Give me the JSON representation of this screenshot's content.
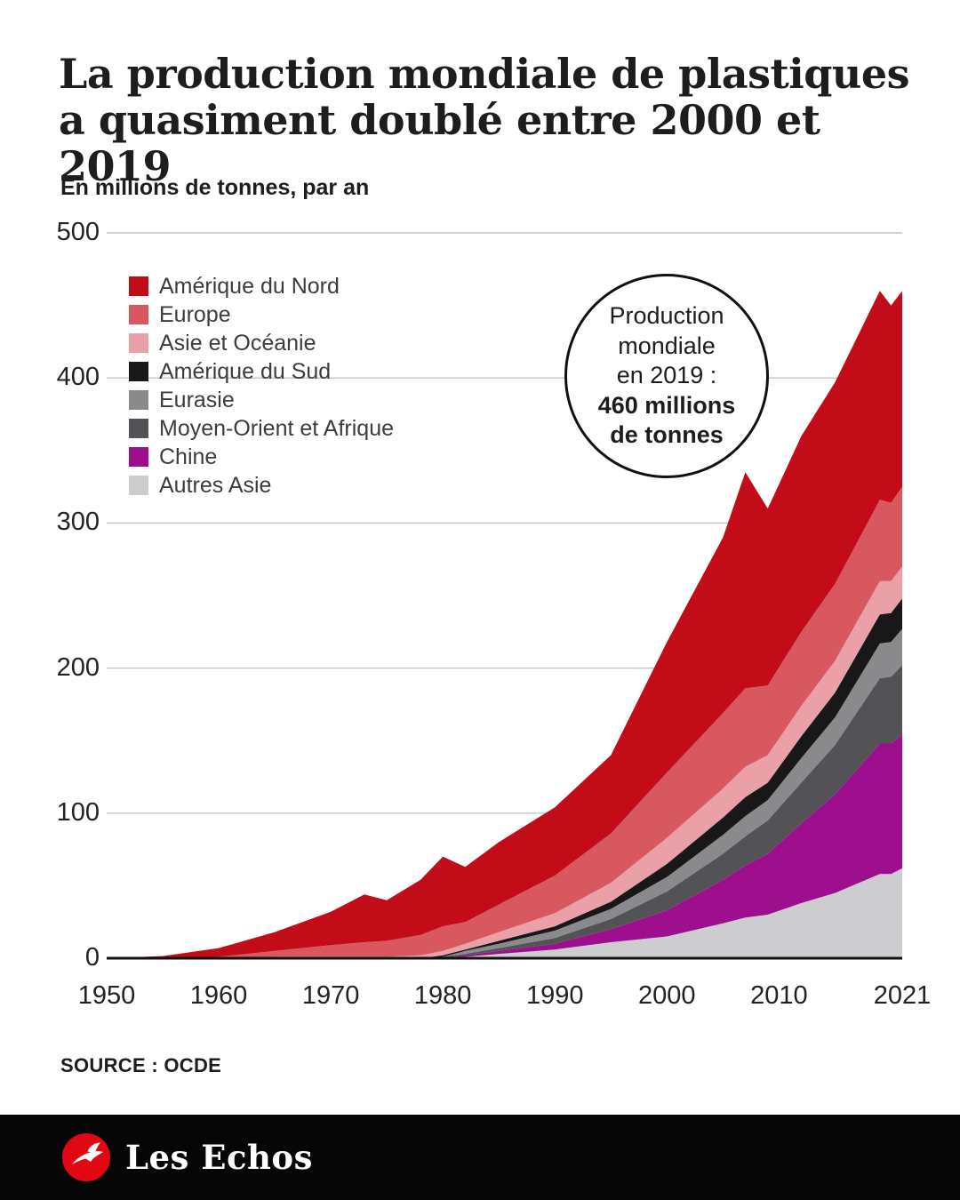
{
  "header": {
    "title_line1": "La production mondiale de plastiques",
    "title_line2": "a quasiment doublé entre 2000 et 2019",
    "subtitle": "En millions de tonnes, par an"
  },
  "annotation": {
    "regular": "Production\nmondiale\nen 2019 :",
    "bold": "460 millions\nde tonnes"
  },
  "source": {
    "label": "SOURCE : OCDE"
  },
  "footer": {
    "brand": "Les Echos",
    "bar_color": "#060606",
    "logo_color": "#e30613"
  },
  "chart_data": {
    "type": "area",
    "stacked": true,
    "title": "La production mondiale de plastiques a quasiment doublé entre 2000 et 2019",
    "xlabel": "",
    "ylabel": "En millions de tonnes, par an",
    "ylim": [
      0,
      500
    ],
    "yticks": [
      0,
      100,
      200,
      300,
      400,
      500
    ],
    "xticks": [
      1950,
      1960,
      1970,
      1980,
      1990,
      2000,
      2010,
      2021
    ],
    "grid": "horizontal",
    "grid_color": "#c3c3c3",
    "baseline_color": "#111111",
    "legend_position": "top-left-inside",
    "x": [
      1950,
      1955,
      1960,
      1965,
      1970,
      1973,
      1975,
      1978,
      1980,
      1982,
      1985,
      1990,
      1995,
      2000,
      2005,
      2007,
      2009,
      2012,
      2015,
      2019,
      2020,
      2021
    ],
    "series": [
      {
        "name": "Amérique du Nord",
        "color": "#c20c18",
        "values": [
          0,
          1.5,
          6,
          13,
          23,
          33,
          28,
          38,
          48,
          38,
          43,
          47,
          54,
          90,
          121,
          149,
          122,
          135,
          139,
          144,
          136,
          135
        ]
      },
      {
        "name": "Europe",
        "color": "#d85860",
        "values": [
          0,
          0,
          1,
          4,
          8,
          10,
          11,
          14,
          17,
          15,
          19,
          26,
          34,
          45,
          52,
          54,
          48,
          51,
          53,
          56,
          54,
          55
        ]
      },
      {
        "name": "Asie et Océanie",
        "color": "#e9a1a7",
        "values": [
          0,
          0,
          0,
          1,
          1,
          1,
          1,
          2,
          3,
          4,
          6,
          9,
          13,
          18,
          20,
          21,
          19,
          21,
          22,
          23,
          22,
          22
        ]
      },
      {
        "name": "Amérique du Sud",
        "color": "#181818",
        "values": [
          0,
          0,
          0,
          0,
          0,
          0,
          0,
          0,
          1,
          1,
          2,
          3,
          5,
          9,
          12,
          13,
          12,
          15,
          17,
          20,
          20,
          21
        ]
      },
      {
        "name": "Eurasie",
        "color": "#8a8a8d",
        "values": [
          0,
          0,
          0,
          0,
          0,
          0,
          0,
          0,
          0,
          2,
          3,
          5,
          7,
          10,
          13,
          14,
          14,
          17,
          19,
          24,
          24,
          25
        ]
      },
      {
        "name": "Moyen-Orient et Afrique",
        "color": "#525257",
        "values": [
          0,
          0,
          0,
          0,
          0,
          0,
          0,
          0,
          1,
          1,
          2,
          4,
          7,
          13,
          18,
          20,
          23,
          28,
          34,
          45,
          46,
          48
        ]
      },
      {
        "name": "Chine",
        "color": "#9e0f8e",
        "values": [
          0,
          0,
          0,
          0,
          0,
          0,
          0,
          0,
          0,
          1,
          2,
          4,
          9,
          18,
          30,
          36,
          42,
          55,
          68,
          90,
          90,
          92
        ]
      },
      {
        "name": "Autres Asie",
        "color": "#cdcdd0",
        "values": [
          0,
          0,
          0,
          0,
          0,
          0,
          0,
          0,
          0,
          1,
          3,
          6,
          11,
          15,
          24,
          28,
          30,
          38,
          45,
          58,
          58,
          62
        ]
      }
    ],
    "stacking_order_note": "stacked bottom-to-top in reverse of series list order",
    "total_2019": 460
  }
}
